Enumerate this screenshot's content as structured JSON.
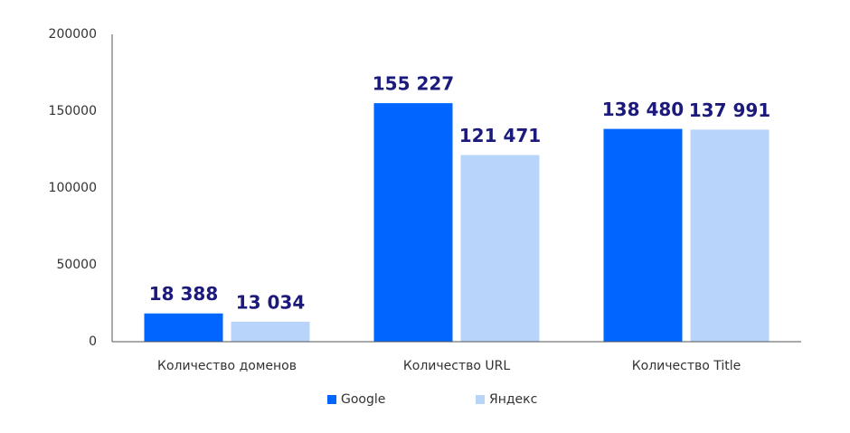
{
  "chart_data": {
    "type": "bar",
    "categories": [
      "Количество доменов",
      "Количество URL",
      "Количество Title"
    ],
    "series": [
      {
        "name": "Google",
        "color": "#0066ff",
        "values": [
          18388,
          155227,
          138480
        ],
        "value_labels": [
          "18 388",
          "155 227",
          "138 480"
        ]
      },
      {
        "name": "Яндекс",
        "color": "#b9d4fb",
        "values": [
          13034,
          121471,
          137991
        ],
        "value_labels": [
          "13 034",
          "121 471",
          "137 991"
        ]
      }
    ],
    "ylim": [
      0,
      200000
    ],
    "yticks": [
      0,
      50000,
      100000,
      150000,
      200000
    ],
    "grid": false
  }
}
